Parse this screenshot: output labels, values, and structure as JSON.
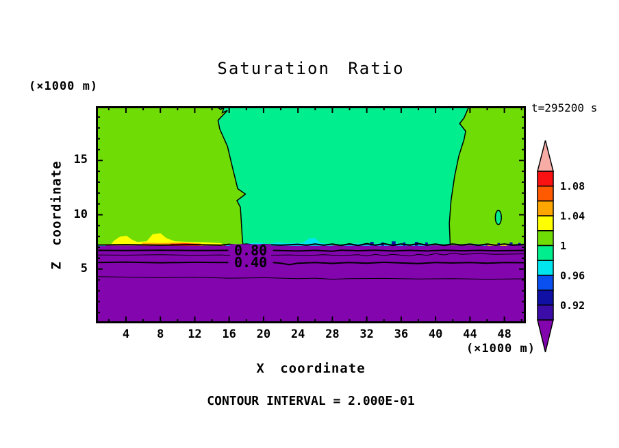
{
  "header": {
    "title": "Saturation Ratio",
    "time_label": "t=295200 s"
  },
  "axes": {
    "y_name": "Z coordinate",
    "y_unit": "(×1000 m)",
    "x_name": "X coordinate",
    "x_unit": "(×1000 m)",
    "x_tick_labels": [
      4,
      8,
      12,
      16,
      20,
      24,
      28,
      32,
      36,
      40,
      44,
      48
    ],
    "y_tick_labels": [
      5,
      10,
      15
    ]
  },
  "footer": {
    "contour_interval_label": "CONTOUR INTERVAL = 2.000E-01"
  },
  "colorbar": {
    "over_color": "#F8ACA6",
    "under_color": "#8205AD",
    "segments": [
      {
        "color": "#FA1212",
        "label_below": "1.08"
      },
      {
        "color": "#FF5A00"
      },
      {
        "color": "#FFA600",
        "label_below": "1.04"
      },
      {
        "color": "#FFFF00"
      },
      {
        "color": "#70DC05",
        "label_below": "1"
      },
      {
        "color": "#00EE8E"
      },
      {
        "color": "#00E5EE",
        "label_below": "0.96"
      },
      {
        "color": "#0A50F0"
      },
      {
        "color": "#1010A5",
        "label_below": "0.92"
      },
      {
        "color": "#3C0CA8"
      }
    ]
  },
  "chart_data": {
    "type": "heatmap",
    "title": "Saturation Ratio",
    "xlabel": "X coordinate (×1000 m)",
    "ylabel": "Z coordinate (×1000 m)",
    "field": "saturation ratio (filled contours)",
    "time_label": "t=295200 s",
    "contour_interval": 0.2,
    "labeled_contour_values": [
      0.8,
      0.4
    ],
    "xlim": [
      0.5,
      50.5
    ],
    "ylim": [
      0,
      20
    ],
    "x_ticks_major": [
      4,
      8,
      12,
      16,
      20,
      24,
      28,
      32,
      36,
      40,
      44,
      48
    ],
    "x_tick_minor_step": 2,
    "y_ticks_major": [
      5,
      10,
      15
    ],
    "y_tick_minor_step": 1,
    "colorbar_tick_labels": [
      "1.08",
      "1.04",
      "1",
      "0.96",
      "0.92"
    ],
    "colorbar_level_range": [
      0.9,
      1.1
    ],
    "colorbar_level_step": 0.02,
    "colors": {
      "lime": "#70DC05",
      "teal": "#00EE8E",
      "purple": "#8205AD",
      "cyan": "#00E5EE",
      "navy": "#1010A5",
      "blue": "#0A50F0",
      "yellow": "#FFFF00",
      "orange": "#FFA600",
      "red": "#FA1212",
      "orange_red": "#FF5A00"
    },
    "geometry": {
      "purple_top_z": 7.18,
      "teal_left_boundary": [
        [
          14.5,
          20
        ],
        [
          15.0,
          19.7
        ],
        [
          15.4,
          19.9
        ],
        [
          15.2,
          19.4
        ],
        [
          15.8,
          19.6
        ],
        [
          14.7,
          18.7
        ],
        [
          14.9,
          17.9
        ],
        [
          15.8,
          16.3
        ],
        [
          16.4,
          14.3
        ],
        [
          17.0,
          12.4
        ],
        [
          17.9,
          11.9
        ],
        [
          16.9,
          11.3
        ],
        [
          17.3,
          10.7
        ],
        [
          17.4,
          9.5
        ],
        [
          17.5,
          8.2
        ],
        [
          17.6,
          7.18
        ]
      ],
      "teal_right_boundary": [
        [
          43.9,
          20
        ],
        [
          43.3,
          18.9
        ],
        [
          42.8,
          18.4
        ],
        [
          43.5,
          17.7
        ],
        [
          43.3,
          16.9
        ],
        [
          42.7,
          15.4
        ],
        [
          42.2,
          13.5
        ],
        [
          41.8,
          11.3
        ],
        [
          41.6,
          9.2
        ],
        [
          41.7,
          7.18
        ]
      ],
      "teal_blob": {
        "cx": 47.3,
        "cz": 9.75,
        "rx": 0.35,
        "rz": 0.65
      },
      "streaks": [
        {
          "color": "cyan",
          "pts": [
            [
              0.5,
              7.12
            ],
            [
              0.5,
              7.3
            ],
            [
              1.4,
              7.28
            ],
            [
              1.7,
              7.12
            ]
          ]
        },
        {
          "color": "yellow",
          "pts": [
            [
              0.5,
              7.3
            ],
            [
              2.3,
              7.32
            ],
            [
              2.6,
              7.6
            ],
            [
              3.3,
              7.98
            ],
            [
              4.1,
              8.05
            ],
            [
              4.7,
              7.7
            ],
            [
              5.3,
              7.5
            ],
            [
              6.4,
              7.55
            ],
            [
              7.1,
              8.2
            ],
            [
              8.0,
              8.3
            ],
            [
              8.7,
              7.85
            ],
            [
              9.7,
              7.55
            ],
            [
              11.5,
              7.5
            ],
            [
              13.6,
              7.45
            ],
            [
              15.1,
              7.38
            ],
            [
              15.4,
              7.15
            ],
            [
              0.5,
              7.18
            ]
          ]
        },
        {
          "color": "orange",
          "pts": [
            [
              5.8,
              7.15
            ],
            [
              5.9,
              7.42
            ],
            [
              8.0,
              7.4
            ],
            [
              10.5,
              7.44
            ],
            [
              12.7,
              7.36
            ],
            [
              12.9,
              7.15
            ]
          ]
        },
        {
          "color": "red",
          "pts": [
            [
              9.0,
              7.15
            ],
            [
              9.2,
              7.33
            ],
            [
              11.0,
              7.36
            ],
            [
              12.4,
              7.3
            ],
            [
              12.6,
              7.15
            ]
          ]
        },
        {
          "color": "cyan",
          "pts": [
            [
              15.6,
              7.15
            ],
            [
              15.7,
              7.3
            ],
            [
              16.9,
              7.28
            ],
            [
              17.0,
              7.15
            ]
          ]
        },
        {
          "color": "cyan",
          "pts": [
            [
              17.8,
              7.15
            ],
            [
              18.1,
              7.38
            ],
            [
              19.6,
              7.42
            ],
            [
              20.6,
              7.3
            ],
            [
              21.6,
              7.46
            ],
            [
              22.6,
              7.36
            ],
            [
              24.6,
              7.42
            ],
            [
              25.3,
              7.82
            ],
            [
              26.0,
              7.86
            ],
            [
              26.6,
              7.4
            ],
            [
              27.6,
              7.3
            ],
            [
              28.1,
              7.15
            ]
          ]
        },
        {
          "color": "cyan",
          "pts": [
            [
              29.0,
              7.15
            ],
            [
              29.6,
              7.3
            ],
            [
              31.0,
              7.36
            ],
            [
              32.6,
              7.26
            ],
            [
              33.6,
              7.4
            ],
            [
              34.6,
              7.3
            ],
            [
              36.0,
              7.36
            ],
            [
              37.0,
              7.26
            ],
            [
              38.1,
              7.36
            ],
            [
              39.1,
              7.3
            ],
            [
              39.6,
              7.15
            ]
          ]
        },
        {
          "color": "cyan",
          "pts": [
            [
              44.4,
              7.15
            ],
            [
              44.6,
              7.3
            ],
            [
              45.6,
              7.28
            ],
            [
              45.9,
              7.15
            ]
          ]
        },
        {
          "color": "yellow",
          "pts": [
            [
              46.0,
              7.15
            ],
            [
              46.3,
              7.34
            ],
            [
              47.6,
              7.32
            ],
            [
              48.3,
              7.2
            ],
            [
              48.3,
              7.15
            ]
          ]
        }
      ],
      "navy_specks": [
        [
          32.4,
          7.5,
          0.4
        ],
        [
          33.7,
          7.45,
          0.3
        ],
        [
          34.9,
          7.55,
          0.45
        ],
        [
          36.2,
          7.45,
          0.3
        ],
        [
          37.6,
          7.5,
          0.35
        ],
        [
          38.8,
          7.45,
          0.3
        ],
        [
          47.2,
          7.4,
          0.3
        ],
        [
          48.6,
          7.45,
          0.35
        ],
        [
          49.6,
          7.4,
          0.3
        ]
      ],
      "navy_interface_line": [
        [
          29,
          7.2
        ],
        [
          30,
          7.28
        ],
        [
          31,
          7.18
        ],
        [
          32,
          7.3
        ],
        [
          33,
          7.2
        ],
        [
          34,
          7.32
        ],
        [
          35,
          7.2
        ],
        [
          36,
          7.3
        ],
        [
          37,
          7.22
        ],
        [
          38,
          7.32
        ],
        [
          39,
          7.2
        ],
        [
          40,
          7.28
        ],
        [
          41,
          7.2
        ],
        [
          42,
          7.3
        ],
        [
          43,
          7.22
        ],
        [
          44,
          7.3
        ],
        [
          45,
          7.2
        ],
        [
          46,
          7.28
        ],
        [
          47,
          7.2
        ],
        [
          48,
          7.3
        ],
        [
          49,
          7.22
        ],
        [
          50.5,
          7.28
        ]
      ],
      "contour_lines": [
        {
          "level": 1.0,
          "width": 2,
          "pts": [
            [
              0.5,
              7.22
            ],
            [
              4,
              7.25
            ],
            [
              8,
              7.2
            ],
            [
              12,
              7.25
            ],
            [
              15,
              7.2
            ],
            [
              16,
              7.28
            ],
            [
              17,
              7.2
            ],
            [
              18,
              7.3
            ],
            [
              19,
              7.2
            ],
            [
              20,
              7.26
            ],
            [
              22,
              7.2
            ],
            [
              24,
              7.28
            ],
            [
              25,
              7.2
            ],
            [
              26,
              7.3
            ],
            [
              27,
              7.2
            ],
            [
              28,
              7.3
            ],
            [
              29,
              7.18
            ],
            [
              30,
              7.32
            ],
            [
              31,
              7.18
            ],
            [
              32,
              7.34
            ],
            [
              33,
              7.2
            ],
            [
              34,
              7.34
            ],
            [
              35,
              7.18
            ],
            [
              36,
              7.3
            ],
            [
              37,
              7.2
            ],
            [
              38,
              7.34
            ],
            [
              39,
              7.2
            ],
            [
              40,
              7.3
            ],
            [
              41,
              7.18
            ],
            [
              42,
              7.3
            ],
            [
              43,
              7.2
            ],
            [
              44,
              7.28
            ],
            [
              45,
              7.18
            ],
            [
              46,
              7.3
            ],
            [
              47,
              7.2
            ],
            [
              48,
              7.3
            ],
            [
              49,
              7.2
            ],
            [
              50.5,
              7.26
            ]
          ]
        },
        {
          "level": 0.8,
          "width": 2,
          "label_gap": [
            15.9,
            21.1
          ],
          "pts": [
            [
              0.5,
              6.72
            ],
            [
              4,
              6.7
            ],
            [
              8,
              6.74
            ],
            [
              12,
              6.7
            ],
            [
              15.9,
              6.72
            ],
            [
              21.1,
              6.72
            ],
            [
              24,
              6.66
            ],
            [
              26,
              6.72
            ],
            [
              28,
              6.64
            ],
            [
              29,
              6.74
            ],
            [
              31,
              6.68
            ],
            [
              33,
              6.74
            ],
            [
              35,
              6.66
            ],
            [
              37,
              6.72
            ],
            [
              39,
              6.66
            ],
            [
              41,
              6.74
            ],
            [
              43,
              6.68
            ],
            [
              45,
              6.72
            ],
            [
              47,
              6.68
            ],
            [
              50.5,
              6.72
            ]
          ]
        },
        {
          "level": 0.6,
          "width": 1,
          "pts": [
            [
              0.5,
              6.3
            ],
            [
              4,
              6.28
            ],
            [
              8,
              6.33
            ],
            [
              12,
              6.26
            ],
            [
              15,
              6.3
            ],
            [
              17,
              6.22
            ],
            [
              18,
              6.32
            ],
            [
              20,
              6.26
            ],
            [
              23,
              6.3
            ],
            [
              25,
              6.24
            ],
            [
              27,
              6.32
            ],
            [
              29,
              6.24
            ],
            [
              31,
              6.32
            ],
            [
              32,
              6.2
            ],
            [
              33,
              6.36
            ],
            [
              34,
              6.24
            ],
            [
              35,
              6.36
            ],
            [
              36,
              6.28
            ],
            [
              37,
              6.2
            ],
            [
              38,
              6.36
            ],
            [
              39,
              6.26
            ],
            [
              40,
              6.42
            ],
            [
              41,
              6.3
            ],
            [
              42,
              6.46
            ],
            [
              43,
              6.36
            ],
            [
              45,
              6.42
            ],
            [
              47,
              6.36
            ],
            [
              50.5,
              6.4
            ]
          ]
        },
        {
          "level": 0.4,
          "width": 2,
          "label_gap": [
            15.9,
            21.1
          ],
          "pts": [
            [
              0.5,
              5.6
            ],
            [
              4,
              5.64
            ],
            [
              8,
              5.58
            ],
            [
              12,
              5.62
            ],
            [
              15.9,
              5.6
            ],
            [
              21.1,
              5.6
            ],
            [
              22,
              5.54
            ],
            [
              23,
              5.4
            ],
            [
              24,
              5.54
            ],
            [
              26,
              5.6
            ],
            [
              28,
              5.52
            ],
            [
              30,
              5.6
            ],
            [
              32,
              5.54
            ],
            [
              34,
              5.62
            ],
            [
              36,
              5.56
            ],
            [
              38,
              5.5
            ],
            [
              40,
              5.6
            ],
            [
              42,
              5.56
            ],
            [
              44,
              5.6
            ],
            [
              46,
              5.54
            ],
            [
              48,
              5.6
            ],
            [
              50.5,
              5.58
            ]
          ]
        },
        {
          "level": 0.2,
          "width": 1,
          "pts": [
            [
              0.5,
              4.3
            ],
            [
              4,
              4.26
            ],
            [
              8,
              4.2
            ],
            [
              12,
              4.24
            ],
            [
              16,
              4.16
            ],
            [
              20,
              4.2
            ],
            [
              24,
              4.12
            ],
            [
              26,
              4.16
            ],
            [
              28,
              4.06
            ],
            [
              30,
              4.12
            ],
            [
              34,
              4.14
            ],
            [
              38,
              4.08
            ],
            [
              42,
              4.12
            ],
            [
              46,
              4.06
            ],
            [
              50.5,
              4.1
            ]
          ]
        }
      ],
      "contour_text_labels": [
        {
          "text": "0.80",
          "x": 18.5,
          "z": 6.72
        },
        {
          "text": "0.40",
          "x": 18.5,
          "z": 5.6
        }
      ]
    }
  }
}
